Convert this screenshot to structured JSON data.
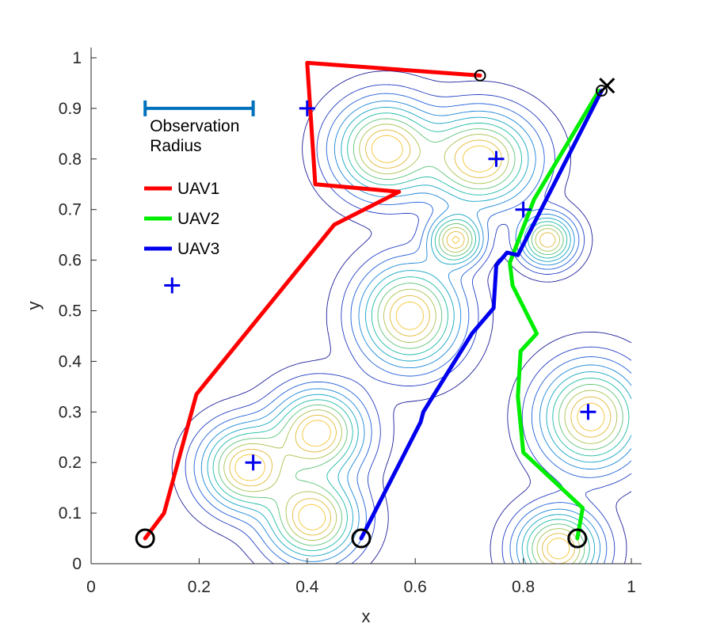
{
  "chart_data": {
    "type": "line",
    "title": "",
    "xlabel": "x",
    "ylabel": "y",
    "xlim": [
      0,
      1
    ],
    "ylim": [
      0,
      1
    ],
    "xticks": [
      "0",
      "0.2",
      "0.4",
      "0.6",
      "0.8",
      "1"
    ],
    "yticks": [
      "0",
      "0.1",
      "0.2",
      "0.3",
      "0.4",
      "0.5",
      "0.6",
      "0.7",
      "0.8",
      "0.9",
      "1"
    ],
    "series": [
      {
        "name": "UAV1",
        "color": "#ff0000",
        "x": [
          0.1,
          0.135,
          0.195,
          0.45,
          0.57,
          0.415,
          0.4,
          0.72
        ],
        "y": [
          0.05,
          0.1,
          0.335,
          0.67,
          0.735,
          0.75,
          0.99,
          0.965
        ]
      },
      {
        "name": "UAV2",
        "color": "#00ee00",
        "x": [
          0.9,
          0.91,
          0.8,
          0.79,
          0.795,
          0.825,
          0.78,
          0.775,
          0.82,
          0.94
        ],
        "y": [
          0.05,
          0.11,
          0.22,
          0.33,
          0.42,
          0.455,
          0.55,
          0.595,
          0.72,
          0.935
        ]
      },
      {
        "name": "UAV3",
        "color": "#0000ee",
        "x": [
          0.5,
          0.61,
          0.615,
          0.705,
          0.745,
          0.75,
          0.77,
          0.79,
          0.945
        ],
        "y": [
          0.05,
          0.28,
          0.3,
          0.455,
          0.505,
          0.59,
          0.615,
          0.61,
          0.935
        ]
      }
    ],
    "targets": [
      {
        "x": 0.4,
        "y": 0.9
      },
      {
        "x": 0.75,
        "y": 0.8
      },
      {
        "x": 0.8,
        "y": 0.7
      },
      {
        "x": 0.15,
        "y": 0.55
      },
      {
        "x": 0.92,
        "y": 0.3
      },
      {
        "x": 0.3,
        "y": 0.2
      }
    ],
    "start_points": [
      {
        "x": 0.1,
        "y": 0.05
      },
      {
        "x": 0.5,
        "y": 0.05
      },
      {
        "x": 0.9,
        "y": 0.05
      }
    ],
    "end_points": [
      {
        "x": 0.72,
        "y": 0.965
      },
      {
        "x": 0.945,
        "y": 0.935
      }
    ],
    "cross_marker": {
      "x": 0.955,
      "y": 0.945
    },
    "observation_radius": {
      "x_start": 0.1,
      "x_end": 0.3,
      "y": 0.9,
      "label_line1": "Observation",
      "label_line2": "Radius",
      "color": "#0072bd"
    },
    "contour_peaks": [
      {
        "x": 0.545,
        "y": 0.82,
        "sx": 0.055,
        "sy": 0.055,
        "a": 1.0
      },
      {
        "x": 0.72,
        "y": 0.8,
        "sx": 0.06,
        "sy": 0.055,
        "a": 1.0
      },
      {
        "x": 0.675,
        "y": 0.64,
        "sx": 0.03,
        "sy": 0.03,
        "a": 0.9
      },
      {
        "x": 0.845,
        "y": 0.64,
        "sx": 0.03,
        "sy": 0.03,
        "a": 0.9
      },
      {
        "x": 0.59,
        "y": 0.49,
        "sx": 0.055,
        "sy": 0.06,
        "a": 1.0
      },
      {
        "x": 0.42,
        "y": 0.26,
        "sx": 0.05,
        "sy": 0.05,
        "a": 1.0
      },
      {
        "x": 0.29,
        "y": 0.19,
        "sx": 0.05,
        "sy": 0.05,
        "a": 1.0
      },
      {
        "x": 0.41,
        "y": 0.09,
        "sx": 0.05,
        "sy": 0.05,
        "a": 1.0
      },
      {
        "x": 0.925,
        "y": 0.29,
        "sx": 0.055,
        "sy": 0.06,
        "a": 1.0
      },
      {
        "x": 0.865,
        "y": 0.03,
        "sx": 0.045,
        "sy": 0.045,
        "a": 1.0
      }
    ],
    "contour_levels": [
      0.02,
      0.07,
      0.14,
      0.23,
      0.33,
      0.44,
      0.56,
      0.68,
      0.8,
      0.9
    ],
    "contour_colors": [
      "#1f1f9a",
      "#233ec3",
      "#1f60d8",
      "#1a85d8",
      "#13a4c4",
      "#1dbaa3",
      "#5cc27a",
      "#a9c350",
      "#e0b838",
      "#f5c534"
    ],
    "legend": {
      "position": "upper-left",
      "entries": [
        {
          "label": "UAV1",
          "color": "#ff0000"
        },
        {
          "label": "UAV2",
          "color": "#00ee00"
        },
        {
          "label": "UAV3",
          "color": "#0000ee"
        }
      ]
    }
  }
}
